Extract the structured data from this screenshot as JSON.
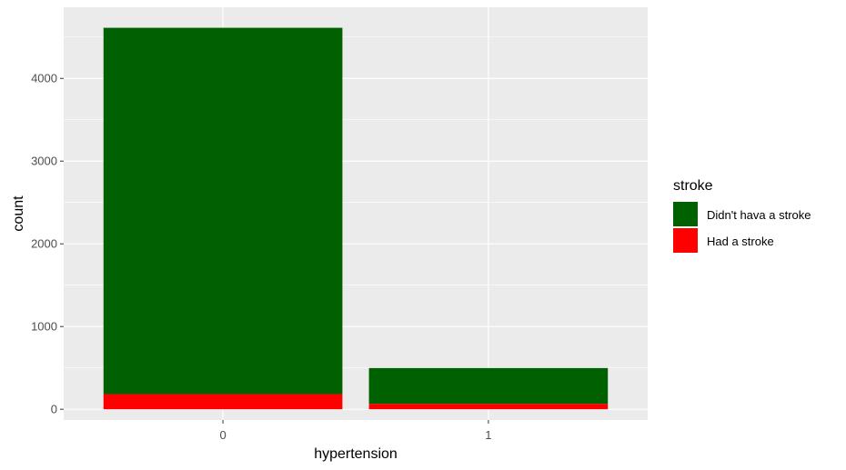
{
  "chart_data": {
    "type": "bar",
    "stacked": true,
    "categories": [
      "0",
      "1"
    ],
    "series": [
      {
        "name": "Didn't hava a stroke",
        "values": [
          4429,
          432
        ],
        "color": "#006100"
      },
      {
        "name": "Had a stroke",
        "values": [
          183,
          66
        ],
        "color": "#ff0000"
      }
    ],
    "xlabel": "hypertension",
    "ylabel": "count",
    "ylim": [
      -130,
      4860
    ],
    "yticks": [
      0,
      1000,
      2000,
      3000,
      4000
    ],
    "grid": true,
    "legend": {
      "title": "stroke",
      "placement": "right"
    }
  }
}
